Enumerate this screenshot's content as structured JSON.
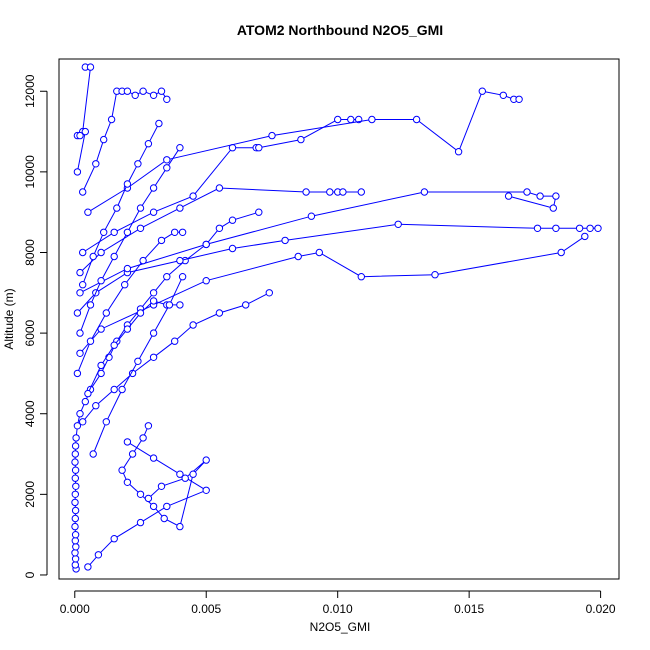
{
  "chart_data": {
    "type": "line",
    "title": "ATOM2 Northbound N2O5_GMI",
    "xlabel": "N2O5_GMI",
    "ylabel": "Altitude (m)",
    "xlim": [
      -0.0006,
      0.0207
    ],
    "ylim": [
      -100,
      12800
    ],
    "xticks": [
      0.0,
      0.005,
      0.01,
      0.015,
      0.02
    ],
    "xtick_labels": [
      "0.000",
      "0.005",
      "0.010",
      "0.015",
      "0.020"
    ],
    "yticks": [
      0,
      2000,
      4000,
      6000,
      8000,
      10000,
      12000
    ],
    "ytick_labels": [
      "0",
      "2000",
      "4000",
      "6000",
      "8000",
      "10000",
      "12000"
    ],
    "grid": false,
    "legend": "none",
    "series_color": "#0000ff",
    "marker": "open-circle",
    "series": [
      {
        "x": [
          5e-05,
          2e-05,
          3e-05,
          1e-05,
          4e-05,
          2e-05,
          3e-05,
          1e-05,
          2e-05,
          3e-05,
          1e-05,
          2e-05,
          4e-05,
          2e-05,
          3e-05,
          1e-05,
          2e-05,
          3e-05,
          5e-05,
          0.0001,
          0.0002,
          0.0004,
          0.0006,
          0.001,
          0.0013,
          0.0016,
          0.002,
          0.0025,
          0.003,
          0.0035,
          0.0042,
          0.005,
          0.0055,
          0.006,
          0.007
        ],
        "y": [
          150,
          250,
          400,
          550,
          700,
          850,
          1000,
          1200,
          1400,
          1600,
          1800,
          2000,
          2200,
          2400,
          2600,
          2800,
          3000,
          3200,
          3400,
          3700,
          4000,
          4300,
          4600,
          5000,
          5400,
          5800,
          6200,
          6600,
          7000,
          7400,
          7800,
          8200,
          8600,
          8800,
          9000
        ]
      },
      {
        "x": [
          0.0005,
          0.0009,
          0.0015,
          0.0025,
          0.0035,
          0.005,
          0.004,
          0.003,
          0.002
        ],
        "y": [
          200,
          500,
          900,
          1300,
          1700,
          2100,
          2500,
          2900,
          3300
        ]
      },
      {
        "x": [
          0.0028,
          0.0026,
          0.0022,
          0.0018,
          0.002,
          0.0025,
          0.003,
          0.0034,
          0.004,
          0.0045,
          0.005,
          0.0042,
          0.0033,
          0.0028
        ],
        "y": [
          3700,
          3400,
          3000,
          2600,
          2300,
          2000,
          1700,
          1400,
          1200,
          2500,
          2850,
          2400,
          2200,
          1900
        ]
      },
      {
        "x": [
          0.0003,
          0.0008,
          0.0015,
          0.0022,
          0.003,
          0.0038,
          0.0045,
          0.0055,
          0.0065,
          0.0074
        ],
        "y": [
          3800,
          4200,
          4600,
          5000,
          5400,
          5800,
          6200,
          6500,
          6700,
          7000
        ]
      },
      {
        "x": [
          0.0002,
          0.001,
          0.003,
          0.005,
          0.0085,
          0.0093,
          0.0109,
          0.0137,
          0.0185,
          0.0194
        ],
        "y": [
          5500,
          6100,
          6700,
          7300,
          7900,
          8000,
          7400,
          7450,
          8000,
          8400
        ]
      },
      {
        "x": [
          0.0001,
          0.0008,
          0.002,
          0.004,
          0.006,
          0.008,
          0.0123,
          0.0176,
          0.0183,
          0.0192,
          0.0196,
          0.0199
        ],
        "y": [
          6500,
          7000,
          7500,
          7800,
          8100,
          8300,
          8700,
          8600,
          8600,
          8600,
          8600,
          8600
        ]
      },
      {
        "x": [
          0.0002,
          0.002,
          0.005,
          0.009,
          0.0133,
          0.0172,
          0.0177,
          0.0183,
          0.0182,
          0.0165
        ],
        "y": [
          7000,
          7600,
          8200,
          8900,
          9500,
          9500,
          9400,
          9400,
          9100,
          9400
        ]
      },
      {
        "x": [
          0.0002,
          0.001,
          0.0025,
          0.004,
          0.0055,
          0.0088,
          0.0097,
          0.01,
          0.0102,
          0.0109
        ],
        "y": [
          7500,
          8000,
          8600,
          9100,
          9600,
          9500,
          9500,
          9500,
          9500,
          9500
        ]
      },
      {
        "x": [
          0.0003,
          0.0015,
          0.003,
          0.0045,
          0.006,
          0.0069,
          0.007,
          0.0086,
          0.01,
          0.0105,
          0.0108
        ],
        "y": [
          8000,
          8500,
          9000,
          9400,
          10600,
          10600,
          10600,
          10800,
          11300,
          11300,
          11300
        ]
      },
      {
        "x": [
          0.0005,
          0.002,
          0.0035,
          0.0075,
          0.0113,
          0.013,
          0.0146,
          0.0155,
          0.0163,
          0.0167,
          0.0169
        ],
        "y": [
          9000,
          9600,
          10300,
          10900,
          11300,
          11300,
          10500,
          12000,
          11900,
          11800,
          11800
        ]
      },
      {
        "x": [
          0.0003,
          0.0008,
          0.0011,
          0.0014,
          0.0016,
          0.0018,
          0.002,
          0.0023,
          0.0026,
          0.003,
          0.0033,
          0.0035
        ],
        "y": [
          9500,
          10200,
          10800,
          11300,
          12000,
          12000,
          12000,
          11900,
          12000,
          11900,
          12000,
          11800
        ]
      },
      {
        "x": [
          0.0004,
          0.0006,
          0.0003,
          0.0001,
          0.0002,
          0.0004,
          0.0001
        ],
        "y": [
          12600,
          12600,
          11000,
          10900,
          10900,
          11000,
          10000
        ]
      },
      {
        "x": [
          0.0005,
          0.001,
          0.0015,
          0.002,
          0.0025,
          0.003,
          0.0035,
          0.004
        ],
        "y": [
          4500,
          5200,
          5700,
          6100,
          6500,
          6800,
          6700,
          6700
        ]
      },
      {
        "x": [
          0.0007,
          0.0012,
          0.0018,
          0.0024,
          0.003,
          0.0036,
          0.0041
        ],
        "y": [
          3000,
          3800,
          4600,
          5300,
          6000,
          6700,
          7400
        ]
      },
      {
        "x": [
          0.0001,
          0.0006,
          0.0012,
          0.0019,
          0.0026,
          0.0033,
          0.0038,
          0.0041
        ],
        "y": [
          5000,
          5800,
          6500,
          7200,
          7800,
          8300,
          8500,
          8500
        ]
      },
      {
        "x": [
          0.0002,
          0.0006,
          0.001,
          0.0015,
          0.002,
          0.0025,
          0.003,
          0.0035,
          0.004
        ],
        "y": [
          6000,
          6700,
          7300,
          7900,
          8500,
          9100,
          9600,
          10100,
          10600
        ]
      },
      {
        "x": [
          0.0003,
          0.0007,
          0.0011,
          0.0016,
          0.002,
          0.0024,
          0.0028,
          0.0032
        ],
        "y": [
          7200,
          7900,
          8500,
          9100,
          9700,
          10200,
          10700,
          11200
        ]
      }
    ]
  }
}
